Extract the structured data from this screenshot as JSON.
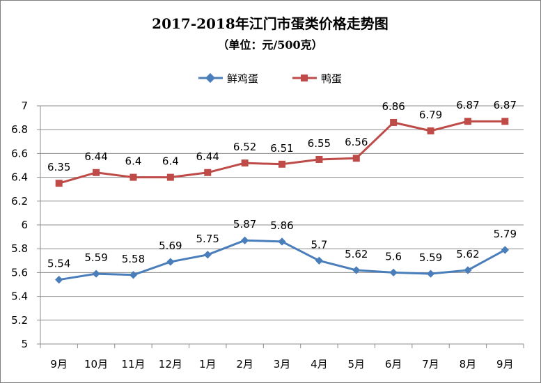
{
  "chart_data": {
    "type": "line",
    "title": "2017-2018年江门市蛋类价格走势图",
    "subtitle": "（单位：元/500克）",
    "xlabel": "",
    "ylabel": "",
    "categories": [
      "9月",
      "10月",
      "11月",
      "12月",
      "1月",
      "2月",
      "3月",
      "4月",
      "5月",
      "6月",
      "7月",
      "8月",
      "9月"
    ],
    "ylim": [
      5,
      7
    ],
    "yticks": [
      "5",
      "5.2",
      "5.4",
      "5.6",
      "5.8",
      "6",
      "6.2",
      "6.4",
      "6.6",
      "6.8",
      "7"
    ],
    "grid": true,
    "legend_position": "top",
    "series": [
      {
        "name": "鲜鸡蛋",
        "color": "#4a7ebb",
        "marker": "diamond",
        "values": [
          5.54,
          5.59,
          5.58,
          5.69,
          5.75,
          5.87,
          5.86,
          5.7,
          5.62,
          5.6,
          5.59,
          5.62,
          5.79
        ],
        "labels": [
          "5.54",
          "5.59",
          "5.58",
          "5.69",
          "5.75",
          "5.87",
          "5.86",
          "5.7",
          "5.62",
          "5.6",
          "5.59",
          "5.62",
          "5.79"
        ]
      },
      {
        "name": "鸭蛋",
        "color": "#be4b48",
        "marker": "square",
        "values": [
          6.35,
          6.44,
          6.4,
          6.4,
          6.44,
          6.52,
          6.51,
          6.55,
          6.56,
          6.86,
          6.79,
          6.87,
          6.87
        ],
        "labels": [
          "6.35",
          "6.44",
          "6.4",
          "6.4",
          "6.44",
          "6.52",
          "6.51",
          "6.55",
          "6.56",
          "6.86",
          "6.79",
          "6.87",
          "6.87"
        ]
      }
    ]
  }
}
